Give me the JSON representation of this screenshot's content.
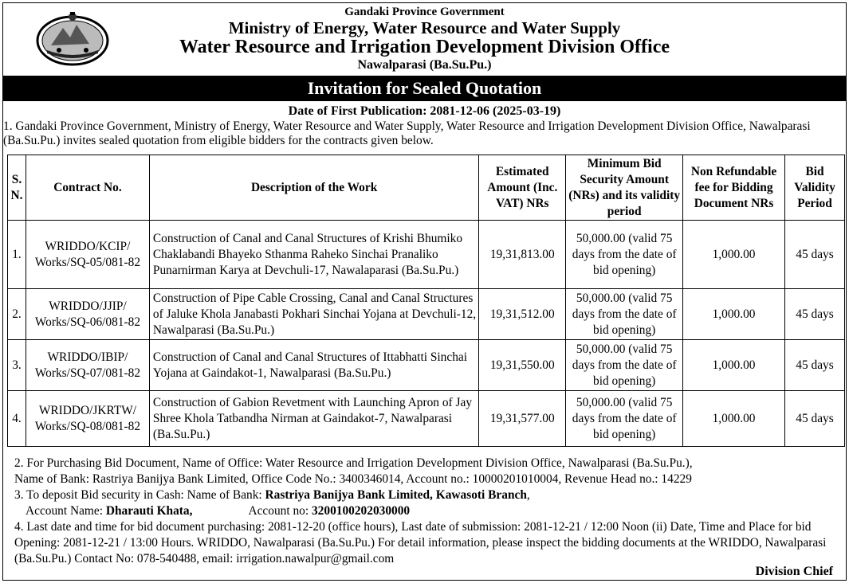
{
  "header": {
    "government": "Gandaki Province Government",
    "ministry": "Ministry of Energy, Water Resource and Water Supply",
    "office": "Water Resource and Irrigation Development Division Office",
    "location": "Nawalparasi (Ba.Su.Pu.)"
  },
  "title": "Invitation for Sealed Quotation",
  "publication_date": "Date of First Publication: 2081-12-06 (2025-03-19)",
  "intro": "1. Gandaki Province Government, Ministry of Energy, Water Resource and Water Supply, Water Resource and Irrigation Development Division Office, Nawalparasi (Ba.Su.Pu.) invites sealed quotation from eligible bidders for the contracts given below.",
  "table": {
    "headers": {
      "sn": "S. N.",
      "contract": "Contract No.",
      "desc": "Description of the Work",
      "amount": "Estimated Amount (Inc. VAT) NRs",
      "security": "Minimum Bid Security Amount (NRs) and its validity period",
      "fee": "Non Refundable fee for Bidding Document NRs",
      "validity": "Bid Validity Period"
    },
    "rows": [
      {
        "sn": "1.",
        "contract": "WRIDDO/KCIP/ Works/SQ-05/081-82",
        "desc": "Construction of Canal and Canal Structures of Krishi Bhumiko Chaklabandi Bhayeko Sthanma Raheko Sinchai Pranaliko Punarnirman Karya at Devchuli-17, Nawalaparasi (Ba.Su.Pu.)",
        "amount": "19,31,813.00",
        "security": "50,000.00 (valid 75 days from the date of bid opening)",
        "fee": "1,000.00",
        "validity": "45 days"
      },
      {
        "sn": "2.",
        "contract": "WRIDDO/JJIP/ Works/SQ-06/081-82",
        "desc": "Construction of Pipe Cable Crossing, Canal and Canal Structures of Jaluke Khola Janabasti Pokhari Sinchai Yojana at Devchuli-12, Nawalparasi (Ba.Su.Pu.)",
        "amount": "19,31,512.00",
        "security": "50,000.00 (valid 75 days from the date of bid opening)",
        "fee": "1,000.00",
        "validity": "45 days"
      },
      {
        "sn": "3.",
        "contract": "WRIDDO/IBIP/ Works/SQ-07/081-82",
        "desc": "Construction of Canal and Canal Structures of Ittabhatti Sinchai Yojana at Gaindakot-1, Nawalparasi (Ba.Su.Pu.)",
        "amount": "19,31,550.00",
        "security": "50,000.00 (valid 75 days from the date of bid opening)",
        "fee": "1,000.00",
        "validity": "45 days"
      },
      {
        "sn": "4.",
        "contract": "WRIDDO/JKRTW/ Works/SQ-08/081-82",
        "desc": "Construction of Gabion Revetment with Launching Apron of Jay Shree Khola Tatbandha Nirman at Gaindakot-7, Nawalparasi (Ba.Su.Pu.)",
        "amount": "19,31,577.00",
        "security": "50,000.00 (valid 75 days from the date of bid opening)",
        "fee": "1,000.00",
        "validity": "45 days"
      }
    ]
  },
  "notes": {
    "n2_line1": "2. For Purchasing Bid Document, Name of Office: Water Resource and Irrigation Development Division Office, Nawalparasi (Ba.Su.Pu.),",
    "n2_line2": "Name of Bank: Rastriya Banijya Bank Limited, Office Code No.: 3400346014, Account no.: 10000201010004, Revenue Head no.: 14229",
    "n3_prefix": "3. To deposit Bid security in Cash: Name of Bank: ",
    "n3_bank": "Rastriya Banijya Bank Limited, Kawasoti Branch",
    "n3_suffix": ",",
    "n3_acc_name_label": "Account Name: ",
    "n3_acc_name": "Dharauti Khata,",
    "n3_acc_no_label": "Account no: ",
    "n3_acc_no": "3200100202030000",
    "n4": "4. Last date and time for bid document purchasing: 2081-12-20 (office hours), Last date of submission: 2081-12-21 / 12:00 Noon (ii) Date, Time and Place for bid Opening: 2081-12-21 / 13:00 Hours. WRIDDO, Nawalparasi (Ba.Su.Pu.) For detail information, please inspect the bidding documents at the WRIDDO, Nawalparasi (Ba.Su.Pu.) Contact No: 078-540488, email: irrigation.nawalpur@gmail.com"
  },
  "signature": "Division Chief"
}
